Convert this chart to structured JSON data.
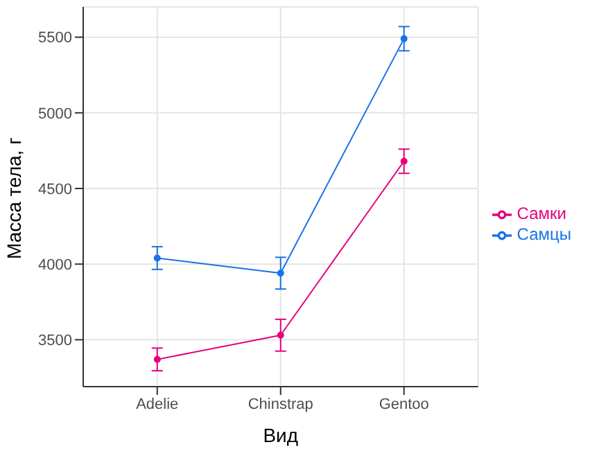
{
  "chart_data": {
    "type": "line",
    "xlabel": "Вид",
    "ylabel": "Масса тела, г",
    "categories": [
      "Adelie",
      "Chinstrap",
      "Gentoo"
    ],
    "series": [
      {
        "name": "Самки",
        "color": "#e6007e",
        "values": [
          3370,
          3530,
          4680
        ],
        "errors": [
          75,
          105,
          80
        ]
      },
      {
        "name": "Самцы",
        "color": "#1873e6",
        "values": [
          4040,
          3940,
          5490
        ],
        "errors": [
          75,
          105,
          80
        ]
      }
    ],
    "ylim": [
      3190,
      5700
    ],
    "yticks": [
      3500,
      4000,
      4500,
      5000,
      5500
    ],
    "grid": true,
    "legend": "right",
    "marker": "circle",
    "line_style": "solid"
  }
}
